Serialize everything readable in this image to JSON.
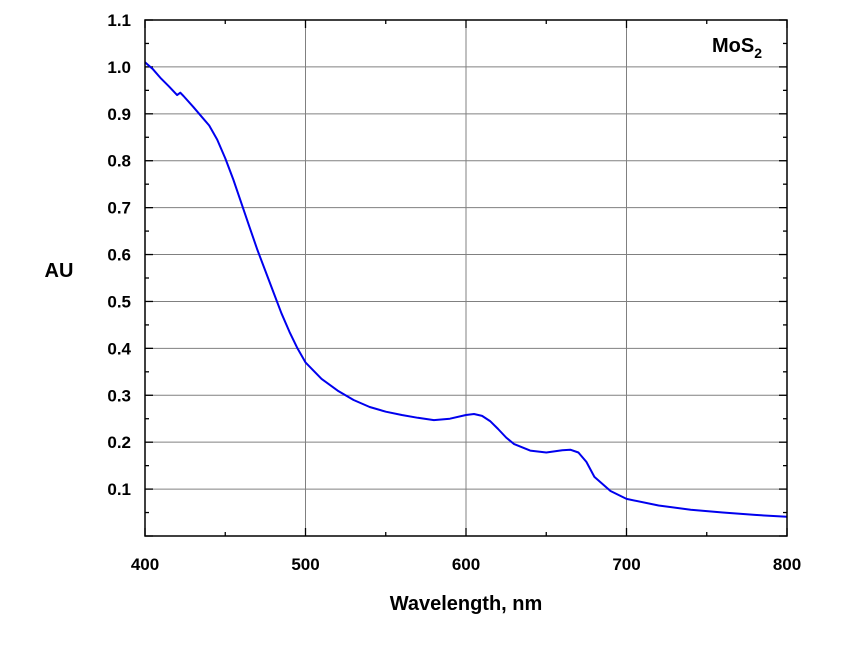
{
  "chart_data": {
    "type": "line",
    "title": "",
    "xlabel": "Wavelength, nm",
    "ylabel": "AU",
    "annotation": {
      "main": "MoS",
      "subscript": "2"
    },
    "xlim": [
      400,
      800
    ],
    "ylim": [
      0.0,
      1.1
    ],
    "xticks": [
      400,
      500,
      600,
      700,
      800
    ],
    "xtick_labels": [
      "400",
      "500",
      "600",
      "700",
      "800"
    ],
    "yticks": [
      0.1,
      0.2,
      0.3,
      0.4,
      0.5,
      0.6,
      0.7,
      0.8,
      0.9,
      1.0,
      1.1
    ],
    "ytick_labels": [
      "0.1",
      "0.2",
      "0.3",
      "0.4",
      "0.5",
      "0.6",
      "0.7",
      "0.8",
      "0.9",
      "1.0",
      "1.1"
    ],
    "grid": true,
    "series": [
      {
        "name": "MoS2",
        "color": "#0000ee",
        "x": [
          400,
          405,
          410,
          415,
          420,
          422,
          424,
          430,
          435,
          440,
          445,
          450,
          455,
          460,
          465,
          470,
          475,
          480,
          485,
          490,
          495,
          500,
          510,
          520,
          530,
          540,
          550,
          560,
          570,
          580,
          590,
          600,
          605,
          610,
          615,
          620,
          625,
          630,
          640,
          650,
          660,
          665,
          670,
          675,
          680,
          690,
          700,
          720,
          740,
          760,
          780,
          800
        ],
        "y": [
          1.01,
          0.995,
          0.975,
          0.958,
          0.94,
          0.945,
          0.938,
          0.915,
          0.895,
          0.875,
          0.845,
          0.805,
          0.76,
          0.71,
          0.66,
          0.61,
          0.565,
          0.52,
          0.475,
          0.435,
          0.4,
          0.37,
          0.335,
          0.31,
          0.29,
          0.275,
          0.265,
          0.258,
          0.252,
          0.247,
          0.25,
          0.258,
          0.26,
          0.256,
          0.245,
          0.228,
          0.21,
          0.196,
          0.182,
          0.178,
          0.183,
          0.184,
          0.178,
          0.158,
          0.126,
          0.096,
          0.079,
          0.065,
          0.056,
          0.05,
          0.045,
          0.041
        ]
      }
    ]
  }
}
